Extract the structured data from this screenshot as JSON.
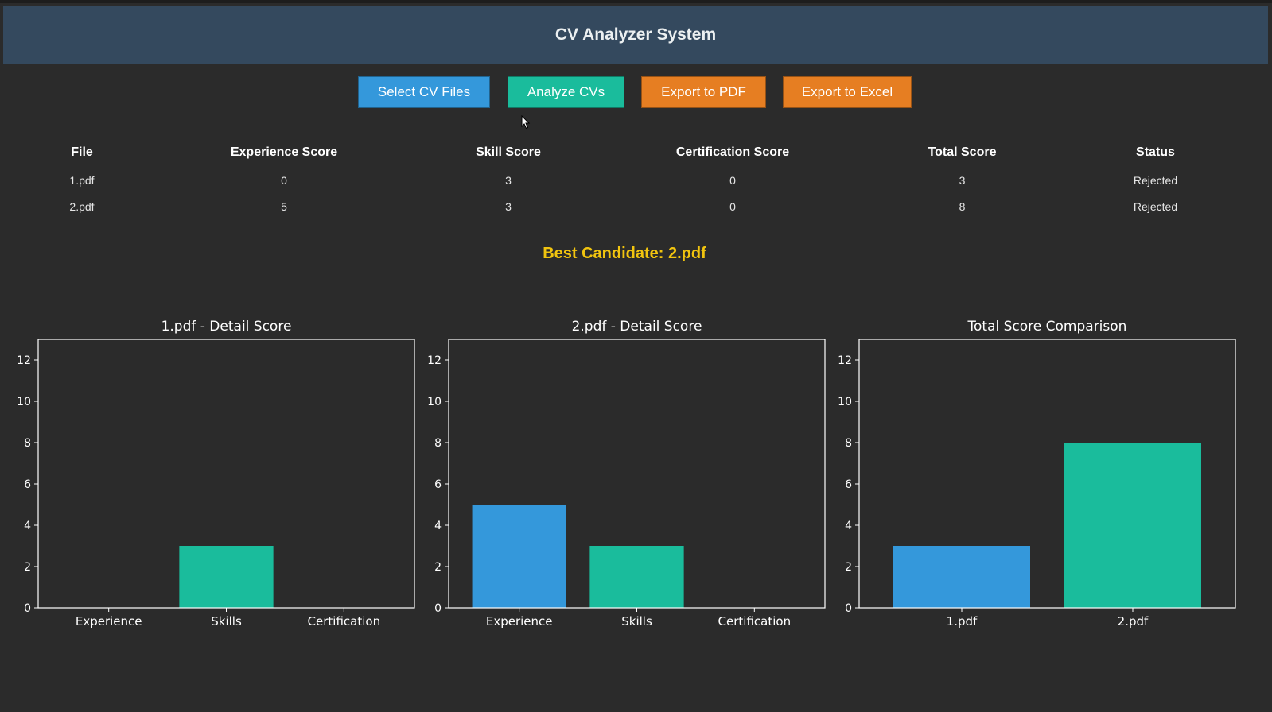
{
  "app": {
    "title": "CV Analyzer System"
  },
  "toolbar": {
    "select_label": "Select CV Files",
    "analyze_label": "Analyze CVs",
    "export_pdf_label": "Export to PDF",
    "export_excel_label": "Export to Excel"
  },
  "table": {
    "headers": [
      "File",
      "Experience Score",
      "Skill Score",
      "Certification Score",
      "Total Score",
      "Status"
    ],
    "rows": [
      [
        "1.pdf",
        "0",
        "3",
        "0",
        "3",
        "Rejected"
      ],
      [
        "2.pdf",
        "5",
        "3",
        "0",
        "8",
        "Rejected"
      ]
    ]
  },
  "best_candidate": "Best Candidate: 2.pdf",
  "colors": {
    "header_bg": "#34495e",
    "blue": "#3498db",
    "teal": "#1abc9c",
    "orange": "#e67e22",
    "highlight": "#f1c40f",
    "background": "#2b2b2b"
  },
  "chart_data": [
    {
      "type": "bar",
      "title": "1.pdf - Detail Score",
      "categories": [
        "Experience",
        "Skills",
        "Certification"
      ],
      "values": [
        0,
        3,
        0
      ],
      "colors": [
        "#3498db",
        "#1abc9c",
        "#e67e22"
      ],
      "ylim": [
        0,
        13
      ],
      "yticks": [
        0,
        2,
        4,
        6,
        8,
        10,
        12
      ],
      "grid": false
    },
    {
      "type": "bar",
      "title": "2.pdf - Detail Score",
      "categories": [
        "Experience",
        "Skills",
        "Certification"
      ],
      "values": [
        5,
        3,
        0
      ],
      "colors": [
        "#3498db",
        "#1abc9c",
        "#e67e22"
      ],
      "ylim": [
        0,
        13
      ],
      "yticks": [
        0,
        2,
        4,
        6,
        8,
        10,
        12
      ],
      "grid": false
    },
    {
      "type": "bar",
      "title": "Total Score Comparison",
      "categories": [
        "1.pdf",
        "2.pdf"
      ],
      "values": [
        3,
        8
      ],
      "colors": [
        "#3498db",
        "#1abc9c"
      ],
      "ylim": [
        0,
        13
      ],
      "yticks": [
        0,
        2,
        4,
        6,
        8,
        10,
        12
      ],
      "grid": false
    }
  ]
}
